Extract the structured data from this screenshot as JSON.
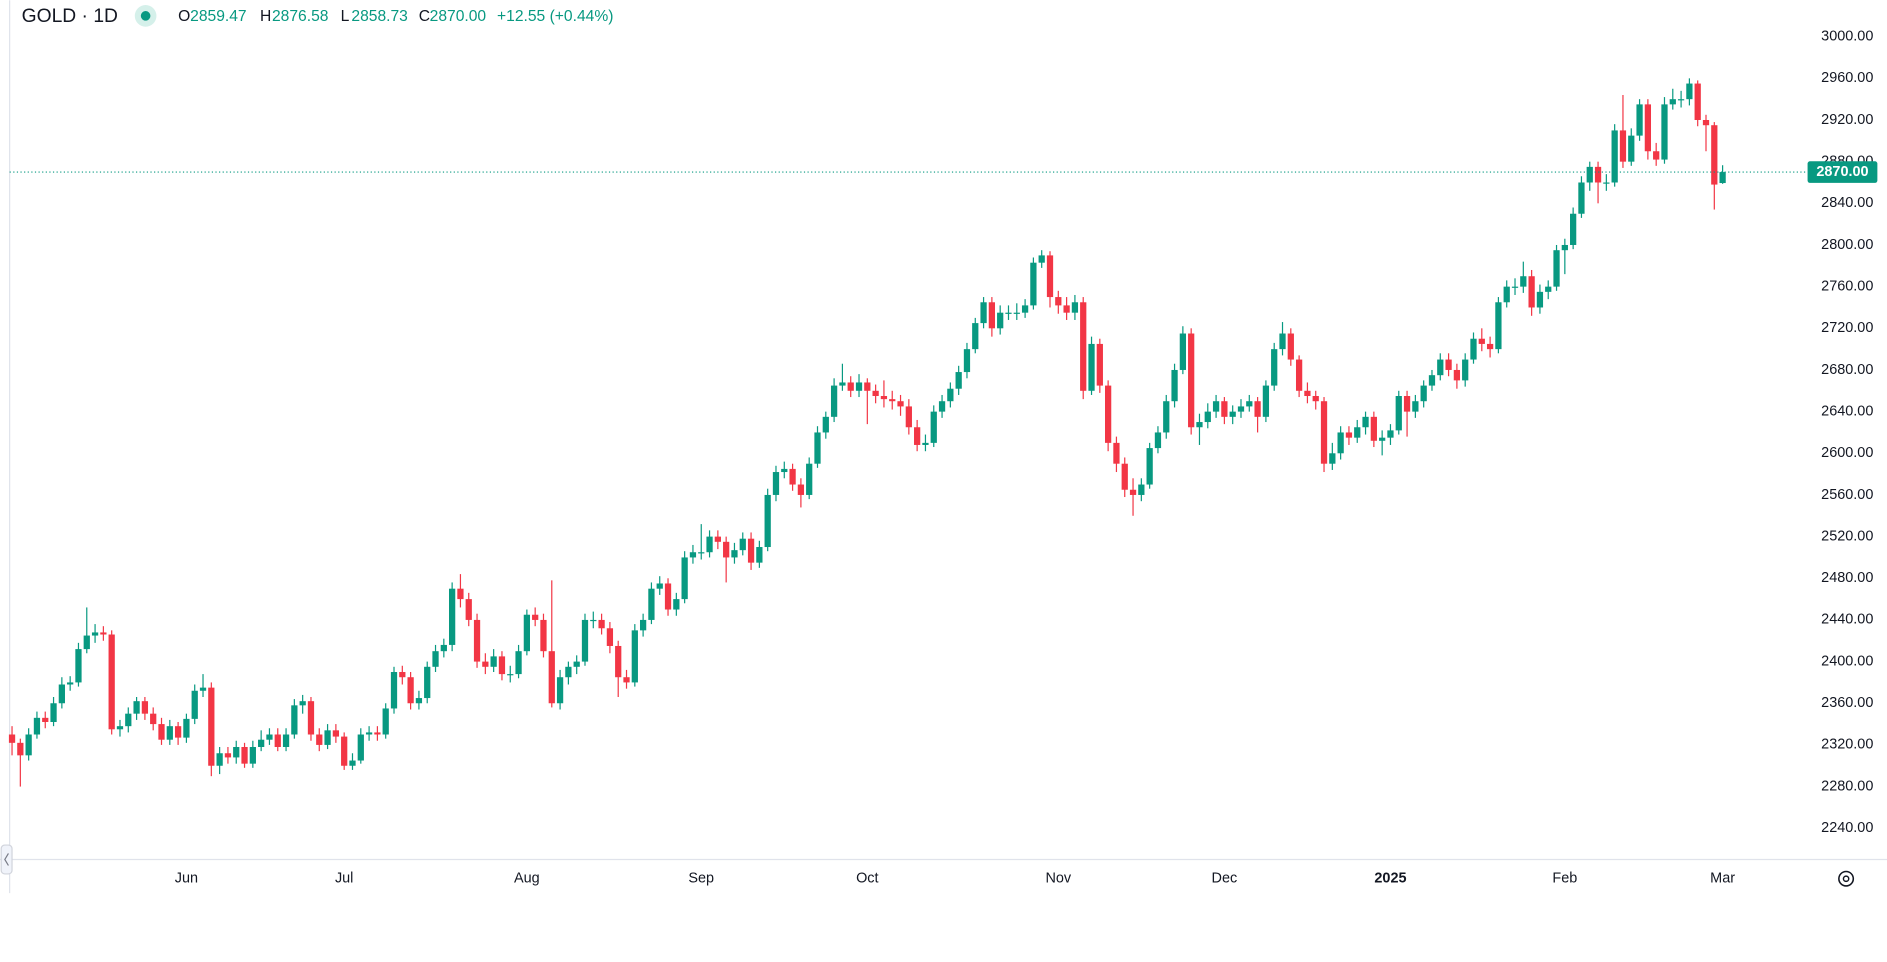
{
  "header": {
    "symbol": "GOLD · 1D",
    "ohlc": [
      {
        "key": "O",
        "value": "2859.47"
      },
      {
        "key": "H",
        "value": "2876.58"
      },
      {
        "key": "L",
        "value": "2858.73"
      },
      {
        "key": "C",
        "value": "2870.00"
      }
    ],
    "change": "+12.55 (+0.44%)"
  },
  "chart_data": {
    "type": "candlestick",
    "categories": [
      null,
      null,
      null,
      null,
      null,
      null,
      null,
      null,
      null,
      null,
      null,
      null,
      null,
      null,
      null,
      null,
      null,
      null,
      null,
      null,
      null,
      "Jun",
      null,
      null,
      null,
      null,
      null,
      null,
      null,
      null,
      null,
      null,
      null,
      null,
      null,
      null,
      null,
      null,
      null,
      null,
      "Jul",
      null,
      null,
      null,
      null,
      null,
      null,
      null,
      null,
      null,
      null,
      null,
      null,
      null,
      null,
      null,
      null,
      null,
      null,
      null,
      null,
      null,
      "Aug",
      null,
      null,
      null,
      null,
      null,
      null,
      null,
      null,
      null,
      null,
      null,
      null,
      null,
      null,
      null,
      null,
      null,
      null,
      null,
      null,
      "Sep",
      null,
      null,
      null,
      null,
      null,
      null,
      null,
      null,
      null,
      null,
      null,
      null,
      null,
      null,
      null,
      null,
      null,
      null,
      null,
      "Oct",
      null,
      null,
      null,
      null,
      null,
      null,
      null,
      null,
      null,
      null,
      null,
      null,
      null,
      null,
      null,
      null,
      null,
      null,
      null,
      null,
      null,
      null,
      "Nov",
      null,
      null,
      null,
      null,
      null,
      null,
      null,
      null,
      null,
      null,
      null,
      null,
      null,
      null,
      null,
      null,
      null,
      null,
      null,
      "Dec",
      null,
      null,
      null,
      null,
      null,
      null,
      null,
      null,
      null,
      null,
      null,
      null,
      null,
      null,
      null,
      null,
      null,
      null,
      null,
      "2025",
      null,
      null,
      null,
      null,
      null,
      null,
      null,
      null,
      null,
      null,
      null,
      null,
      null,
      null,
      null,
      null,
      null,
      null,
      null,
      null,
      "Feb",
      null,
      null,
      null,
      null,
      null,
      null,
      null,
      null,
      null,
      null,
      null,
      null,
      null,
      null,
      null,
      null,
      null,
      null,
      "Mar"
    ],
    "open": [
      2330,
      2322,
      2310,
      2330,
      2346,
      2342,
      2360,
      2378,
      2380,
      2412,
      2425,
      2428,
      2426,
      2335,
      2338,
      2350,
      2362,
      2350,
      2340,
      2325,
      2338,
      2327,
      2345,
      2372,
      2375,
      2300,
      2312,
      2308,
      2318,
      2302,
      2318,
      2325,
      2330,
      2318,
      2330,
      2358,
      2362,
      2330,
      2320,
      2334,
      2328,
      2300,
      2305,
      2330,
      2332,
      2330,
      2355,
      2390,
      2385,
      2360,
      2365,
      2395,
      2410,
      2416,
      2470,
      2460,
      2440,
      2400,
      2395,
      2405,
      2388,
      2388,
      2410,
      2445,
      2440,
      2410,
      2360,
      2385,
      2395,
      2400,
      2440,
      2440,
      2432,
      2415,
      2385,
      2380,
      2430,
      2440,
      2470,
      2475,
      2450,
      2460,
      2500,
      2505,
      2505,
      2520,
      2515,
      2500,
      2507,
      2518,
      2495,
      2510,
      2560,
      2582,
      2585,
      2570,
      2560,
      2590,
      2620,
      2635,
      2665,
      2668,
      2660,
      2668,
      2660,
      2655,
      2652,
      2650,
      2645,
      2625,
      2608,
      2610,
      2640,
      2650,
      2662,
      2678,
      2700,
      2725,
      2745,
      2720,
      2735,
      2735,
      2735,
      2742,
      2783,
      2790,
      2750,
      2742,
      2735,
      2745,
      2660,
      2705,
      2665,
      2610,
      2590,
      2565,
      2560,
      2570,
      2605,
      2620,
      2650,
      2680,
      2715,
      2625,
      2630,
      2640,
      2650,
      2635,
      2640,
      2645,
      2650,
      2635,
      2665,
      2700,
      2715,
      2690,
      2660,
      2655,
      2650,
      2590,
      2600,
      2620,
      2615,
      2625,
      2635,
      2612,
      2615,
      2622,
      2655,
      2640,
      2650,
      2665,
      2675,
      2690,
      2680,
      2670,
      2690,
      2710,
      2705,
      2700,
      2745,
      2760,
      2760,
      2770,
      2740,
      2755,
      2760,
      2795,
      2800,
      2830,
      2860,
      2875,
      2860,
      2860,
      2910,
      2880,
      2905,
      2935,
      2890,
      2882,
      2935,
      2940,
      2940,
      2955,
      2920,
      2915,
      2859.47
    ],
    "high": [
      2338,
      2326,
      2336,
      2352,
      2352,
      2366,
      2385,
      2386,
      2418,
      2452,
      2436,
      2434,
      2430,
      2344,
      2356,
      2366,
      2366,
      2356,
      2346,
      2344,
      2342,
      2350,
      2378,
      2388,
      2380,
      2318,
      2318,
      2324,
      2322,
      2324,
      2334,
      2336,
      2336,
      2336,
      2364,
      2368,
      2366,
      2336,
      2340,
      2340,
      2332,
      2312,
      2336,
      2338,
      2338,
      2360,
      2395,
      2396,
      2390,
      2372,
      2400,
      2416,
      2422,
      2476,
      2484,
      2466,
      2446,
      2408,
      2412,
      2410,
      2396,
      2416,
      2450,
      2452,
      2446,
      2478,
      2392,
      2400,
      2406,
      2446,
      2448,
      2446,
      2438,
      2420,
      2392,
      2436,
      2446,
      2476,
      2482,
      2480,
      2466,
      2506,
      2512,
      2532,
      2526,
      2526,
      2520,
      2514,
      2524,
      2524,
      2516,
      2566,
      2588,
      2592,
      2590,
      2576,
      2596,
      2626,
      2640,
      2672,
      2686,
      2674,
      2676,
      2672,
      2666,
      2670,
      2660,
      2656,
      2652,
      2632,
      2618,
      2646,
      2656,
      2668,
      2684,
      2706,
      2730,
      2750,
      2750,
      2742,
      2742,
      2744,
      2748,
      2788,
      2795,
      2794,
      2756,
      2750,
      2752,
      2750,
      2712,
      2710,
      2670,
      2616,
      2596,
      2576,
      2576,
      2610,
      2626,
      2656,
      2686,
      2722,
      2720,
      2638,
      2648,
      2656,
      2654,
      2646,
      2652,
      2656,
      2654,
      2670,
      2706,
      2726,
      2720,
      2694,
      2668,
      2660,
      2654,
      2610,
      2626,
      2626,
      2632,
      2640,
      2640,
      2622,
      2628,
      2660,
      2660,
      2656,
      2670,
      2680,
      2696,
      2696,
      2686,
      2696,
      2716,
      2720,
      2712,
      2750,
      2766,
      2768,
      2784,
      2776,
      2762,
      2766,
      2800,
      2806,
      2836,
      2866,
      2880,
      2880,
      2868,
      2916,
      2944,
      2912,
      2940,
      2940,
      2898,
      2942,
      2950,
      2948,
      2960,
      2958,
      2925,
      2918,
      2876.58
    ],
    "low": [
      2310,
      2280,
      2305,
      2326,
      2336,
      2338,
      2355,
      2372,
      2376,
      2408,
      2418,
      2420,
      2330,
      2328,
      2332,
      2344,
      2344,
      2334,
      2320,
      2320,
      2320,
      2322,
      2340,
      2366,
      2290,
      2292,
      2302,
      2302,
      2298,
      2298,
      2314,
      2320,
      2314,
      2314,
      2326,
      2350,
      2324,
      2314,
      2316,
      2322,
      2296,
      2296,
      2302,
      2324,
      2324,
      2326,
      2350,
      2378,
      2354,
      2354,
      2360,
      2390,
      2404,
      2410,
      2452,
      2434,
      2394,
      2388,
      2390,
      2382,
      2380,
      2384,
      2406,
      2434,
      2404,
      2356,
      2354,
      2378,
      2388,
      2396,
      2432,
      2426,
      2408,
      2366,
      2374,
      2376,
      2424,
      2436,
      2464,
      2444,
      2444,
      2456,
      2494,
      2498,
      2500,
      2508,
      2476,
      2494,
      2502,
      2488,
      2490,
      2506,
      2554,
      2576,
      2564,
      2548,
      2556,
      2586,
      2614,
      2630,
      2660,
      2654,
      2654,
      2628,
      2648,
      2644,
      2642,
      2636,
      2618,
      2602,
      2602,
      2606,
      2634,
      2644,
      2656,
      2672,
      2696,
      2720,
      2712,
      2714,
      2728,
      2728,
      2730,
      2738,
      2778,
      2740,
      2734,
      2728,
      2728,
      2652,
      2656,
      2658,
      2602,
      2582,
      2558,
      2540,
      2554,
      2566,
      2600,
      2614,
      2644,
      2676,
      2618,
      2608,
      2624,
      2634,
      2628,
      2628,
      2634,
      2640,
      2620,
      2630,
      2660,
      2694,
      2684,
      2654,
      2648,
      2642,
      2582,
      2584,
      2594,
      2608,
      2610,
      2618,
      2606,
      2598,
      2608,
      2618,
      2616,
      2634,
      2644,
      2660,
      2670,
      2674,
      2662,
      2664,
      2686,
      2698,
      2692,
      2696,
      2740,
      2752,
      2754,
      2732,
      2734,
      2748,
      2756,
      2772,
      2796,
      2826,
      2852,
      2840,
      2852,
      2856,
      2874,
      2876,
      2900,
      2882,
      2876,
      2878,
      2930,
      2932,
      2934,
      2914,
      2890,
      2834,
      2858.73
    ],
    "close": [
      2322,
      2310,
      2330,
      2346,
      2342,
      2360,
      2378,
      2380,
      2412,
      2425,
      2428,
      2426,
      2335,
      2338,
      2350,
      2362,
      2350,
      2340,
      2325,
      2338,
      2327,
      2345,
      2372,
      2375,
      2300,
      2312,
      2308,
      2318,
      2302,
      2318,
      2325,
      2330,
      2318,
      2330,
      2358,
      2362,
      2330,
      2320,
      2334,
      2328,
      2300,
      2305,
      2330,
      2332,
      2330,
      2355,
      2390,
      2385,
      2360,
      2365,
      2395,
      2410,
      2416,
      2470,
      2460,
      2440,
      2400,
      2395,
      2405,
      2388,
      2388,
      2410,
      2445,
      2440,
      2410,
      2360,
      2385,
      2395,
      2400,
      2440,
      2440,
      2432,
      2415,
      2385,
      2380,
      2430,
      2440,
      2470,
      2475,
      2450,
      2460,
      2500,
      2505,
      2505,
      2520,
      2515,
      2500,
      2507,
      2518,
      2495,
      2510,
      2560,
      2582,
      2585,
      2570,
      2560,
      2590,
      2620,
      2635,
      2665,
      2668,
      2660,
      2668,
      2660,
      2655,
      2652,
      2650,
      2645,
      2625,
      2608,
      2610,
      2640,
      2650,
      2662,
      2678,
      2700,
      2725,
      2745,
      2720,
      2735,
      2735,
      2735,
      2742,
      2783,
      2790,
      2750,
      2742,
      2735,
      2745,
      2660,
      2705,
      2665,
      2610,
      2590,
      2565,
      2560,
      2570,
      2605,
      2620,
      2650,
      2680,
      2715,
      2625,
      2630,
      2640,
      2650,
      2635,
      2640,
      2645,
      2650,
      2635,
      2665,
      2700,
      2715,
      2690,
      2660,
      2655,
      2650,
      2590,
      2600,
      2620,
      2615,
      2625,
      2635,
      2612,
      2615,
      2622,
      2655,
      2640,
      2650,
      2665,
      2675,
      2690,
      2680,
      2670,
      2690,
      2710,
      2705,
      2700,
      2745,
      2760,
      2760,
      2770,
      2740,
      2755,
      2760,
      2795,
      2800,
      2830,
      2860,
      2875,
      2860,
      2860,
      2910,
      2880,
      2905,
      2935,
      2890,
      2882,
      2935,
      2940,
      2940,
      2955,
      2920,
      2915,
      2858,
      2870
    ],
    "up_color": "#089981",
    "down_color": "#f23645",
    "ylim": [
      2210,
      3035
    ],
    "yticks": [
      {
        "value": 2240,
        "label": "2240.00"
      },
      {
        "value": 2280,
        "label": "2280.00"
      },
      {
        "value": 2320,
        "label": "2320.00"
      },
      {
        "value": 2360,
        "label": "2360.00"
      },
      {
        "value": 2400,
        "label": "2400.00"
      },
      {
        "value": 2440,
        "label": "2440.00"
      },
      {
        "value": 2480,
        "label": "2480.00"
      },
      {
        "value": 2520,
        "label": "2520.00"
      },
      {
        "value": 2560,
        "label": "2560.00"
      },
      {
        "value": 2600,
        "label": "2600.00"
      },
      {
        "value": 2640,
        "label": "2640.00"
      },
      {
        "value": 2680,
        "label": "2680.00"
      },
      {
        "value": 2720,
        "label": "2720.00"
      },
      {
        "value": 2760,
        "label": "2760.00"
      },
      {
        "value": 2800,
        "label": "2800.00"
      },
      {
        "value": 2840,
        "label": "2840.00"
      },
      {
        "value": 2880,
        "label": "2880.00"
      },
      {
        "value": 2920,
        "label": "2920.00"
      },
      {
        "value": 2960,
        "label": "2960.00"
      },
      {
        "value": 3000,
        "label": "3000.00"
      }
    ],
    "last_price": {
      "value": 2870,
      "label": "2870.00"
    }
  }
}
